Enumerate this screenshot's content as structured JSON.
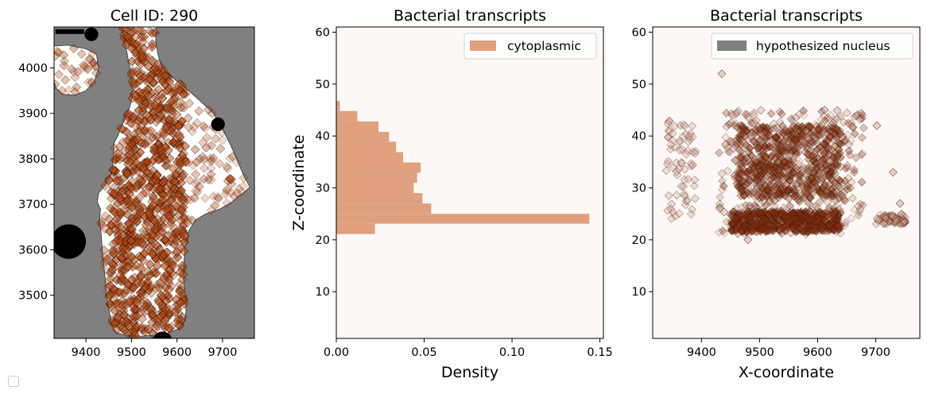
{
  "chart_data": [
    {
      "type": "scatter",
      "title": "Cell ID: 290",
      "xlabel": "",
      "ylabel": "",
      "xlim": [
        9330,
        9770
      ],
      "ylim": [
        3405,
        4090
      ],
      "xticks": [
        9400,
        9500,
        9600,
        9700
      ],
      "yticks": [
        3500,
        3600,
        3700,
        3800,
        3900,
        4000
      ],
      "background": "#808080",
      "cell_region_color": "#ffffff",
      "nucleus_color": "#000000",
      "marker": "diamond",
      "marker_color": "#b5440c",
      "cell_outline": [
        [
          9347,
          4090
        ],
        [
          9480,
          4090
        ],
        [
          9483,
          4072
        ],
        [
          9493,
          4018
        ],
        [
          9500,
          3985
        ],
        [
          9503,
          3960
        ],
        [
          9502,
          3935
        ],
        [
          9495,
          3910
        ],
        [
          9488,
          3892
        ],
        [
          9478,
          3872
        ],
        [
          9470,
          3850
        ],
        [
          9462,
          3835
        ],
        [
          9460,
          3805
        ],
        [
          9458,
          3770
        ],
        [
          9445,
          3745
        ],
        [
          9428,
          3725
        ],
        [
          9425,
          3705
        ],
        [
          9432,
          3690
        ],
        [
          9430,
          3665
        ],
        [
          9433,
          3640
        ],
        [
          9436,
          3600
        ],
        [
          9440,
          3560
        ],
        [
          9443,
          3530
        ],
        [
          9447,
          3490
        ],
        [
          9452,
          3460
        ],
        [
          9458,
          3432
        ],
        [
          9467,
          3418
        ],
        [
          9488,
          3412
        ],
        [
          9520,
          3410
        ],
        [
          9550,
          3412
        ],
        [
          9580,
          3417
        ],
        [
          9600,
          3425
        ],
        [
          9615,
          3440
        ],
        [
          9620,
          3465
        ],
        [
          9618,
          3500
        ],
        [
          9614,
          3535
        ],
        [
          9615,
          3570
        ],
        [
          9618,
          3605
        ],
        [
          9625,
          3640
        ],
        [
          9640,
          3665
        ],
        [
          9665,
          3680
        ],
        [
          9695,
          3690
        ],
        [
          9720,
          3705
        ],
        [
          9745,
          3725
        ],
        [
          9760,
          3738
        ],
        [
          9748,
          3760
        ],
        [
          9735,
          3790
        ],
        [
          9718,
          3830
        ],
        [
          9700,
          3865
        ],
        [
          9680,
          3900
        ],
        [
          9650,
          3928
        ],
        [
          9620,
          3955
        ],
        [
          9588,
          3980
        ],
        [
          9567,
          4000
        ],
        [
          9558,
          4030
        ],
        [
          9553,
          4060
        ],
        [
          9555,
          4090
        ],
        [
          9770,
          4090
        ],
        [
          9770,
          3405
        ],
        [
          9330,
          3405
        ],
        [
          9330,
          4090
        ]
      ],
      "cell_main": [
        [
          9480,
          4090
        ],
        [
          9483,
          4072
        ],
        [
          9493,
          4018
        ],
        [
          9500,
          3985
        ],
        [
          9503,
          3960
        ],
        [
          9502,
          3935
        ],
        [
          9495,
          3910
        ],
        [
          9488,
          3892
        ],
        [
          9478,
          3872
        ],
        [
          9470,
          3850
        ],
        [
          9462,
          3835
        ],
        [
          9460,
          3805
        ],
        [
          9458,
          3770
        ],
        [
          9445,
          3745
        ],
        [
          9428,
          3725
        ],
        [
          9425,
          3705
        ],
        [
          9432,
          3690
        ],
        [
          9430,
          3665
        ],
        [
          9433,
          3640
        ],
        [
          9436,
          3600
        ],
        [
          9440,
          3560
        ],
        [
          9443,
          3530
        ],
        [
          9447,
          3490
        ],
        [
          9452,
          3460
        ],
        [
          9458,
          3432
        ],
        [
          9467,
          3418
        ],
        [
          9488,
          3412
        ],
        [
          9520,
          3410
        ],
        [
          9550,
          3412
        ],
        [
          9580,
          3417
        ],
        [
          9600,
          3425
        ],
        [
          9615,
          3440
        ],
        [
          9620,
          3465
        ],
        [
          9618,
          3500
        ],
        [
          9614,
          3535
        ],
        [
          9615,
          3570
        ],
        [
          9618,
          3605
        ],
        [
          9625,
          3640
        ],
        [
          9640,
          3665
        ],
        [
          9665,
          3680
        ],
        [
          9695,
          3690
        ],
        [
          9720,
          3705
        ],
        [
          9745,
          3725
        ],
        [
          9760,
          3738
        ],
        [
          9748,
          3760
        ],
        [
          9735,
          3790
        ],
        [
          9718,
          3830
        ],
        [
          9700,
          3865
        ],
        [
          9680,
          3900
        ],
        [
          9650,
          3928
        ],
        [
          9620,
          3955
        ],
        [
          9588,
          3980
        ],
        [
          9567,
          4000
        ],
        [
          9558,
          4030
        ],
        [
          9553,
          4060
        ],
        [
          9555,
          4090
        ]
      ],
      "cell_lobe": [
        [
          9330,
          4048
        ],
        [
          9360,
          4050
        ],
        [
          9400,
          4042
        ],
        [
          9423,
          4030
        ],
        [
          9428,
          4000
        ],
        [
          9418,
          3970
        ],
        [
          9400,
          3950
        ],
        [
          9375,
          3940
        ],
        [
          9350,
          3942
        ],
        [
          9335,
          3955
        ],
        [
          9330,
          3970
        ]
      ],
      "nuclei": [
        {
          "cx": 9412,
          "cy": 4074,
          "r": 15
        },
        {
          "cx": 9690,
          "cy": 3876,
          "r": 15
        },
        {
          "cx": 9362,
          "cy": 3618,
          "r": 38
        },
        {
          "cx": 9568,
          "cy": 3398,
          "r": 22
        }
      ],
      "scale_bar": [
        [
          9333,
          4080
        ],
        [
          9396,
          4080
        ]
      ]
    },
    {
      "type": "bar",
      "orientation": "horizontal",
      "title": "Bacterial transcripts",
      "xlabel": "Density",
      "ylabel": "Z-coordinate",
      "xlim": [
        0,
        0.152
      ],
      "ylim": [
        1,
        61
      ],
      "xticks": [
        0.0,
        0.05,
        0.1,
        0.15
      ],
      "xtick_labels": [
        "0.00",
        "0.05",
        "0.10",
        "0.15"
      ],
      "yticks": [
        10,
        20,
        30,
        40,
        50,
        60
      ],
      "bar_color": "#e0a07d",
      "legend": "top-right",
      "series": [
        {
          "name": "cytoplasmic",
          "bins": [
            {
              "z0": 21.1,
              "z1": 23.1,
              "density": 0.022
            },
            {
              "z0": 23.1,
              "z1": 25.0,
              "density": 0.144
            },
            {
              "z0": 25.0,
              "z1": 27.0,
              "density": 0.054
            },
            {
              "z0": 27.0,
              "z1": 29.0,
              "density": 0.049
            },
            {
              "z0": 29.0,
              "z1": 31.0,
              "density": 0.044
            },
            {
              "z0": 31.0,
              "z1": 32.9,
              "density": 0.046
            },
            {
              "z0": 32.9,
              "z1": 34.9,
              "density": 0.048
            },
            {
              "z0": 34.9,
              "z1": 36.9,
              "density": 0.038
            },
            {
              "z0": 36.9,
              "z1": 38.9,
              "density": 0.034
            },
            {
              "z0": 38.9,
              "z1": 40.8,
              "density": 0.03
            },
            {
              "z0": 40.8,
              "z1": 42.8,
              "density": 0.024
            },
            {
              "z0": 42.8,
              "z1": 44.8,
              "density": 0.012
            },
            {
              "z0": 44.8,
              "z1": 46.8,
              "density": 0.002
            }
          ]
        }
      ]
    },
    {
      "type": "scatter",
      "title": "Bacterial transcripts",
      "xlabel": "X-coordinate",
      "ylabel": "",
      "xlim": [
        9316,
        9776
      ],
      "ylim": [
        1,
        61
      ],
      "xticks": [
        9400,
        9500,
        9600,
        9700
      ],
      "yticks": [
        10,
        20,
        30,
        40,
        50,
        60
      ],
      "marker": "diamond",
      "marker_color": "#d49a84",
      "marker_dense_color": "#8a2f0c",
      "legend": "top-right",
      "legend_patch_color": "#808080",
      "series": [
        {
          "name": "hypothesized nucleus",
          "clusters": [
            {
              "x": [
                9338,
                9390
              ],
              "z": [
                24,
                43
              ],
              "density": "sparse"
            },
            {
              "x": [
                9430,
                9680
              ],
              "z": [
                21,
                45
              ],
              "density": "medium"
            },
            {
              "x": [
                9450,
                9640
              ],
              "z": [
                21.5,
                25.5
              ],
              "density": "dense"
            },
            {
              "x": [
                9460,
                9640
              ],
              "z": [
                28,
                42
              ],
              "density": "dense"
            },
            {
              "x": [
                9700,
                9752
              ],
              "z": [
                23,
                25
              ],
              "density": "sparse"
            }
          ],
          "outliers": [
            [
              9435,
              52
            ],
            [
              9480,
              20
            ],
            [
              9730,
              33
            ],
            [
              9742,
              27
            ],
            [
              9702,
              42
            ],
            [
              9612,
              45
            ]
          ]
        }
      ]
    }
  ]
}
